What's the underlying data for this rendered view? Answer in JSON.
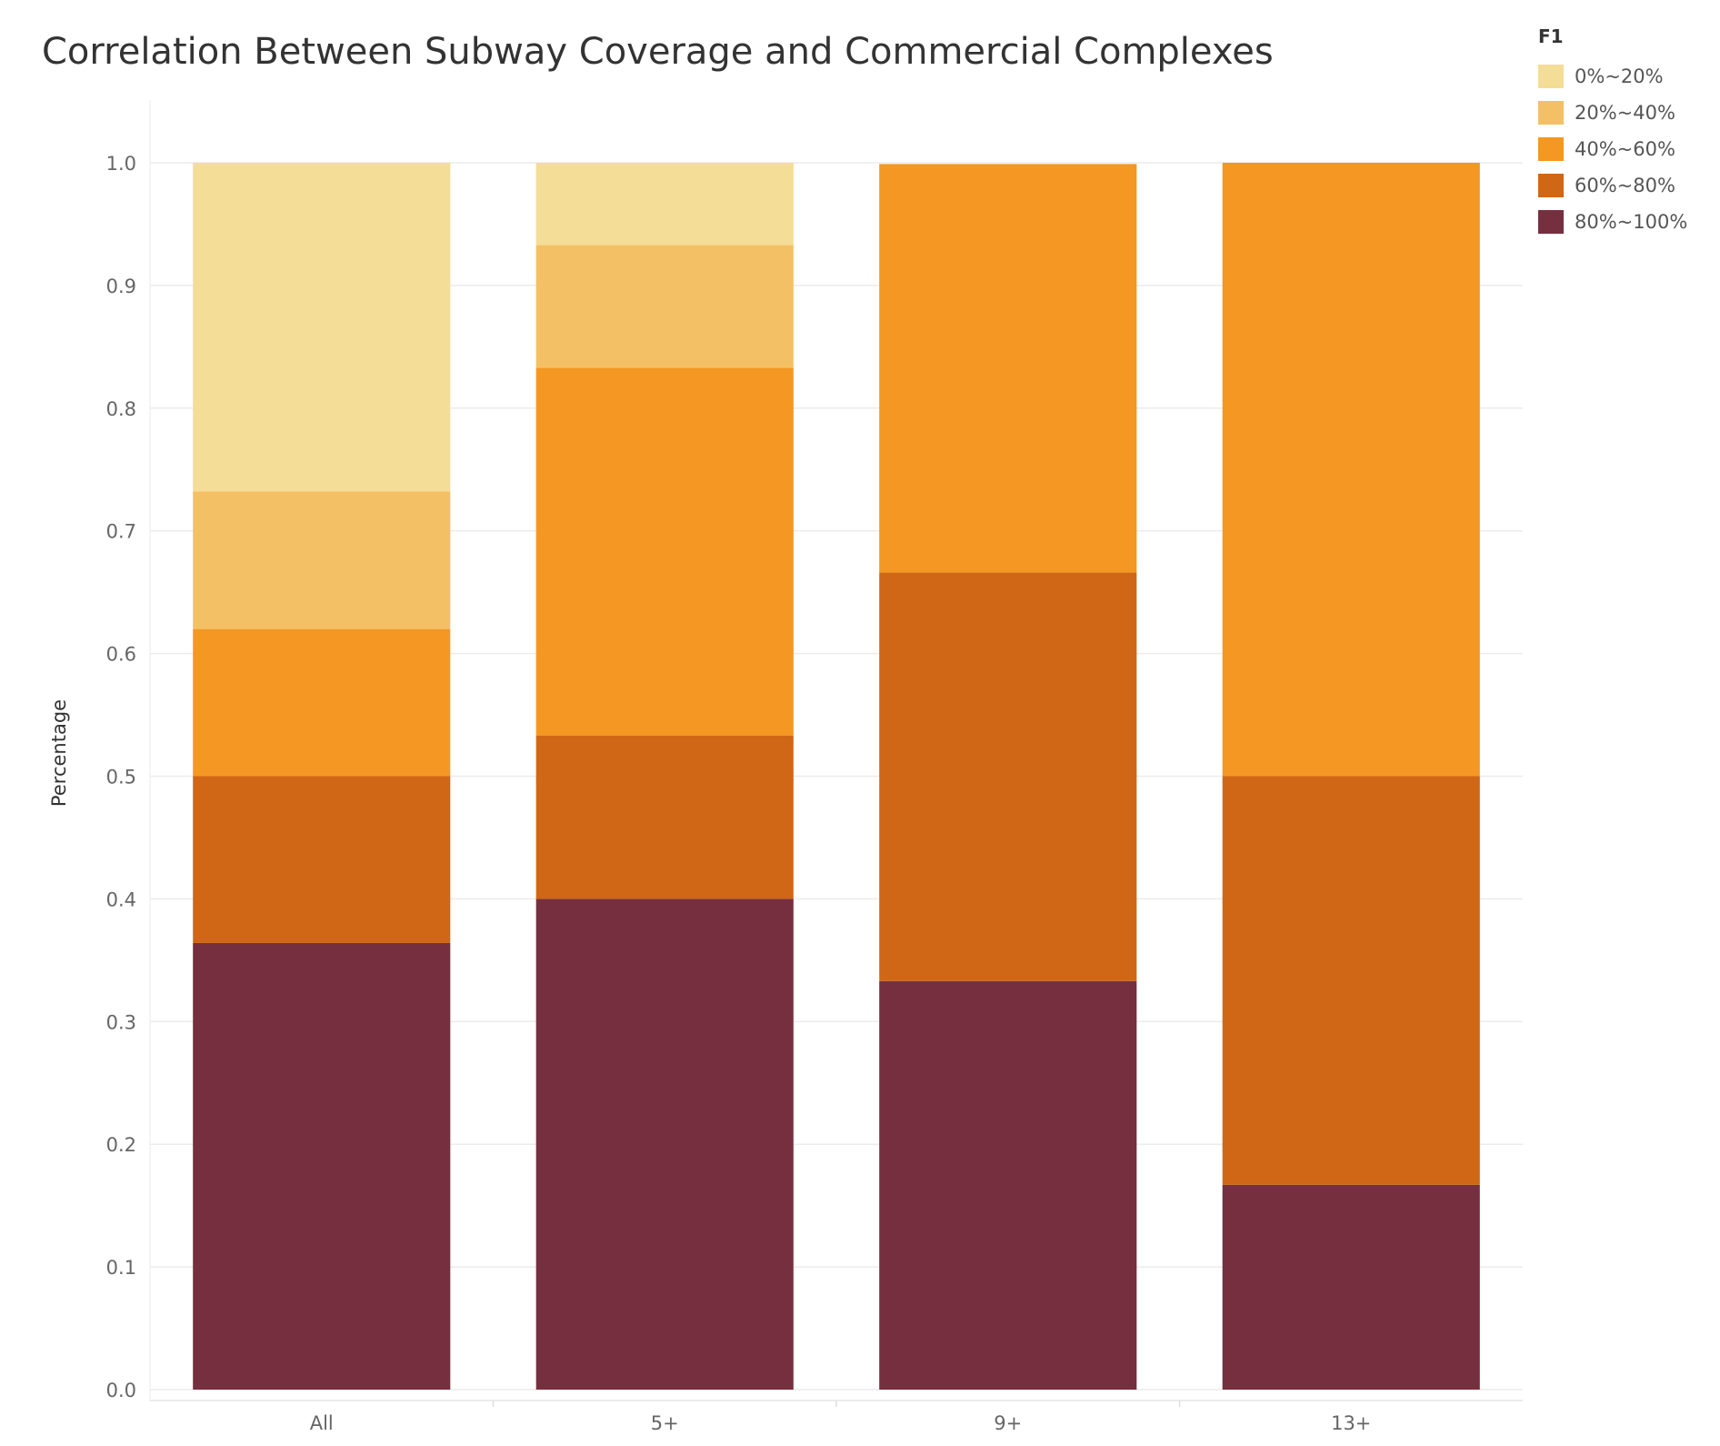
{
  "chart_data": {
    "type": "bar",
    "stacked": true,
    "title": "Correlation Between Subway Coverage and Commercial Complexes",
    "xlabel": "",
    "ylabel": "Percentage",
    "ylim": [
      0,
      1.0
    ],
    "yticks": [
      "0.0",
      "0.1",
      "0.2",
      "0.3",
      "0.4",
      "0.5",
      "0.6",
      "0.7",
      "0.8",
      "0.9",
      "1.0"
    ],
    "categories": [
      "All",
      "5+",
      "9+",
      "13+"
    ],
    "legend_title": "F1",
    "legend_position": "top-right",
    "grid": true,
    "series": [
      {
        "name": "80%~100%",
        "color": "#762f3f",
        "values": [
          0.364,
          0.4,
          0.333,
          0.167
        ]
      },
      {
        "name": "60%~80%",
        "color": "#d06716",
        "values": [
          0.136,
          0.133,
          0.333,
          0.333
        ]
      },
      {
        "name": "40%~60%",
        "color": "#f49723",
        "values": [
          0.12,
          0.3,
          0.333,
          0.5
        ]
      },
      {
        "name": "20%~40%",
        "color": "#f4c065",
        "values": [
          0.112,
          0.1,
          0.0,
          0.0
        ]
      },
      {
        "name": "0%~20%",
        "color": "#f4dd96",
        "values": [
          0.268,
          0.067,
          0.0,
          0.0
        ]
      }
    ]
  }
}
